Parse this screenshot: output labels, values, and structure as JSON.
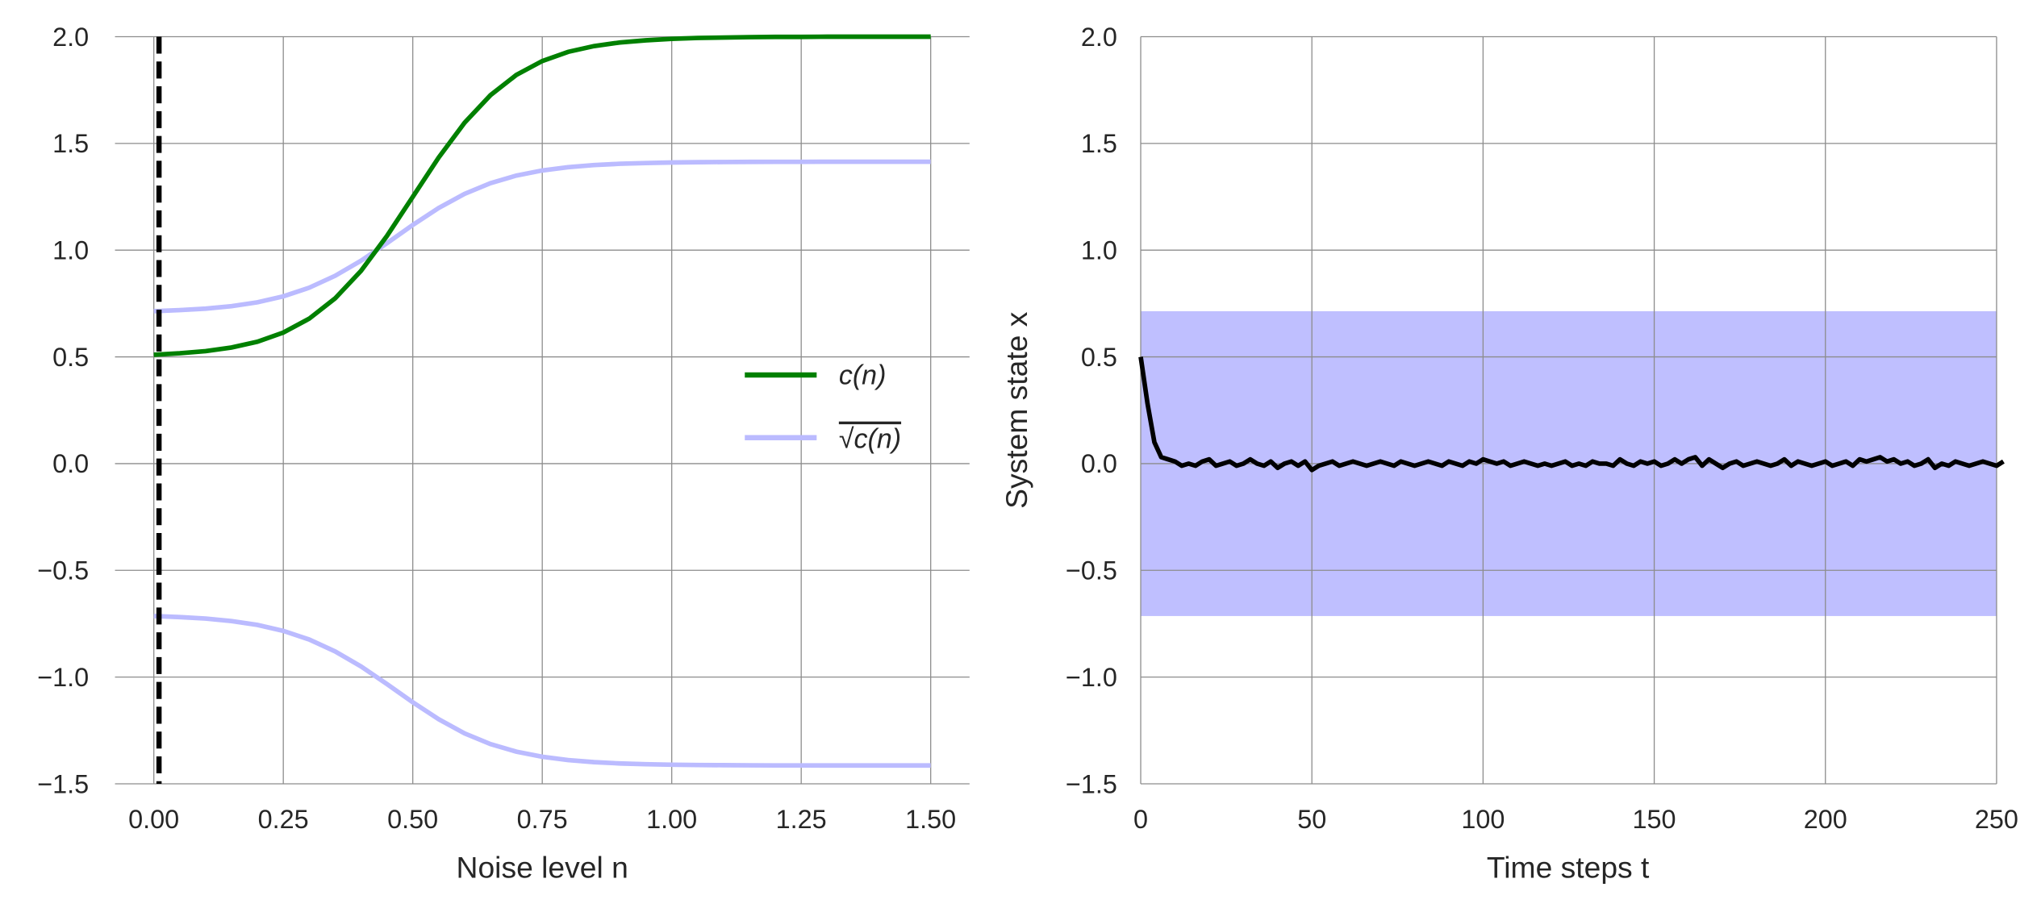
{
  "chart_data": [
    {
      "type": "line",
      "xlabel": "Noise level n",
      "ylabel": "",
      "xlim": [
        -0.075,
        1.575
      ],
      "ylim": [
        -1.5,
        2.0
      ],
      "xticks": [
        "0.00",
        "0.25",
        "0.50",
        "0.75",
        "1.00",
        "1.25",
        "1.50"
      ],
      "xtick_values": [
        0,
        0.25,
        0.5,
        0.75,
        1.0,
        1.25,
        1.5
      ],
      "yticks": [
        "2.0",
        "1.5",
        "1.0",
        "0.5",
        "0.0",
        "−0.5",
        "−1.0",
        "−1.5"
      ],
      "ytick_values": [
        2.0,
        1.5,
        1.0,
        0.5,
        0.0,
        -0.5,
        -1.0,
        -1.5
      ],
      "grid": true,
      "legend_position": "center-right",
      "x": [
        0,
        0.05,
        0.1,
        0.15,
        0.2,
        0.25,
        0.3,
        0.35,
        0.4,
        0.45,
        0.5,
        0.55,
        0.6,
        0.65,
        0.7,
        0.75,
        0.8,
        0.85,
        0.9,
        0.95,
        1.0,
        1.05,
        1.1,
        1.15,
        1.2,
        1.25,
        1.3,
        1.35,
        1.4,
        1.45,
        1.5
      ],
      "series": [
        {
          "name": "c(n)",
          "color": "#008000",
          "values": [
            0.51,
            0.517,
            0.527,
            0.544,
            0.571,
            0.614,
            0.679,
            0.774,
            0.903,
            1.066,
            1.25,
            1.434,
            1.597,
            1.726,
            1.821,
            1.886,
            1.929,
            1.956,
            1.973,
            1.983,
            1.99,
            1.994,
            1.996,
            1.998,
            1.999,
            1.999,
            2.0,
            2.0,
            2.0,
            2.0,
            2.0
          ]
        },
        {
          "name": "√c(n)",
          "color": "#bbbbff",
          "derived": "±sqrt of c(n)"
        }
      ],
      "vline": {
        "x": 0.01,
        "style": "dashed",
        "color": "#000000"
      }
    },
    {
      "type": "line",
      "xlabel": "Time steps t",
      "ylabel": "System state x",
      "xlim": [
        0,
        250
      ],
      "ylim": [
        -1.5,
        2.0
      ],
      "xticks": [
        "0",
        "50",
        "100",
        "150",
        "200",
        "250"
      ],
      "xtick_values": [
        0,
        50,
        100,
        150,
        200,
        250
      ],
      "yticks": [
        "2.0",
        "1.5",
        "1.0",
        "0.5",
        "0.0",
        "−0.5",
        "−1.0",
        "−1.5"
      ],
      "ytick_values": [
        2.0,
        1.5,
        1.0,
        0.5,
        0.0,
        -0.5,
        -1.0,
        -1.5
      ],
      "grid": true,
      "band": {
        "lower": -0.714,
        "upper": 0.714,
        "color": "#bfbfff"
      },
      "t_start": 0,
      "t_step": 2,
      "series": [
        {
          "name": "x",
          "color": "#000000",
          "values": [
            0.5,
            0.28,
            0.1,
            0.03,
            0.02,
            0.01,
            -0.01,
            0.0,
            -0.01,
            0.01,
            0.02,
            -0.01,
            0.0,
            0.01,
            -0.01,
            0.0,
            0.02,
            0.0,
            -0.01,
            0.01,
            -0.02,
            0.0,
            0.01,
            -0.01,
            0.01,
            -0.03,
            -0.01,
            0.0,
            0.01,
            -0.01,
            0.0,
            0.01,
            0.0,
            -0.01,
            0.0,
            0.01,
            0.0,
            -0.01,
            0.01,
            0.0,
            -0.01,
            0.0,
            0.01,
            0.0,
            -0.01,
            0.01,
            0.0,
            -0.01,
            0.01,
            0.0,
            0.02,
            0.01,
            0.0,
            0.01,
            -0.01,
            0.0,
            0.01,
            0.0,
            -0.01,
            0.0,
            -0.01,
            0.0,
            0.01,
            -0.01,
            0.0,
            -0.01,
            0.01,
            0.0,
            0.0,
            -0.01,
            0.02,
            0.0,
            -0.01,
            0.01,
            0.0,
            0.01,
            -0.01,
            0.0,
            0.02,
            0.0,
            0.02,
            0.03,
            -0.01,
            0.02,
            0.0,
            -0.02,
            0.0,
            0.01,
            -0.01,
            0.0,
            0.01,
            0.0,
            -0.01,
            0.0,
            0.02,
            -0.01,
            0.01,
            0.0,
            -0.01,
            0.0,
            0.01,
            -0.01,
            0.0,
            0.01,
            -0.01,
            0.02,
            0.01,
            0.02,
            0.03,
            0.01,
            0.02,
            0.0,
            0.01,
            -0.01,
            0.0,
            0.02,
            -0.02,
            0.0,
            -0.01,
            0.01,
            0.0,
            -0.01,
            0.0,
            0.01,
            0.0,
            -0.01,
            0.01
          ]
        }
      ]
    }
  ]
}
